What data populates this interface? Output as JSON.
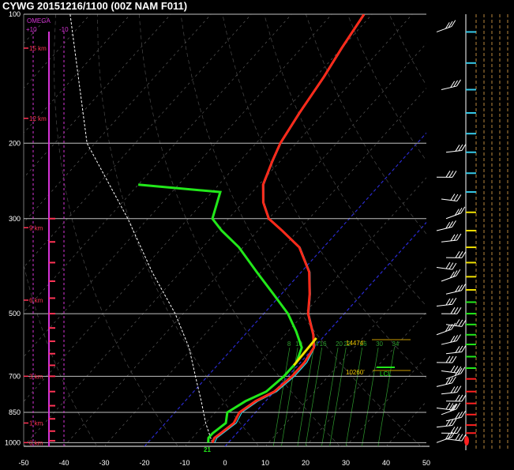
{
  "title": "CYWG  20151216/1100  (00Z  NAM  F011)",
  "colors": {
    "background": "#000000",
    "isobar": "#bfbfbf",
    "temperature": "#ff2a1a",
    "dewpoint": "#22e81a",
    "virtual_temp": "#33d6e8",
    "parcel": "#ffffff",
    "omega": "#d633d6",
    "height_label": "#ff3355",
    "freezing_isotherm": "#2b2bd9",
    "mixing_ratio": "#2e9e2e",
    "lcl_marker": "#22e81a",
    "annotation": "#f0c800",
    "side_cyan": "#36c9e8",
    "side_yellow": "#f0e000",
    "side_green": "#22e81a",
    "side_red": "#ff2020",
    "side_dash": "#b8863b"
  },
  "omega": {
    "label": "OMEGA",
    "left_tick": "+10",
    "right_tick": "-10"
  },
  "annotations": {
    "upper_height": "14474'",
    "lower_height": "10260'",
    "lcl_label": "LCL",
    "surface_temp": "21"
  },
  "chart_data": {
    "type": "line",
    "title": "CYWG  20151216/1100  (00Z  NAM  F011)",
    "x_axis": {
      "ticks": [
        -50,
        -40,
        -30,
        -20,
        -10,
        0,
        10,
        20,
        30,
        40,
        50
      ],
      "range": [
        -50,
        50
      ]
    },
    "y_axis": {
      "ticks": [
        100,
        200,
        300,
        500,
        700,
        850,
        1000
      ],
      "range": [
        1000,
        100
      ],
      "scale": "log"
    },
    "height_labels": [
      "15 km",
      "12 km",
      "9 km",
      "6 km",
      "3 km",
      "1 km",
      "0 km"
    ],
    "mixing_ratio_labels": [
      "8",
      "10",
      "14",
      "16",
      "20",
      "22",
      "26",
      "30",
      "34"
    ],
    "series": []
  }
}
